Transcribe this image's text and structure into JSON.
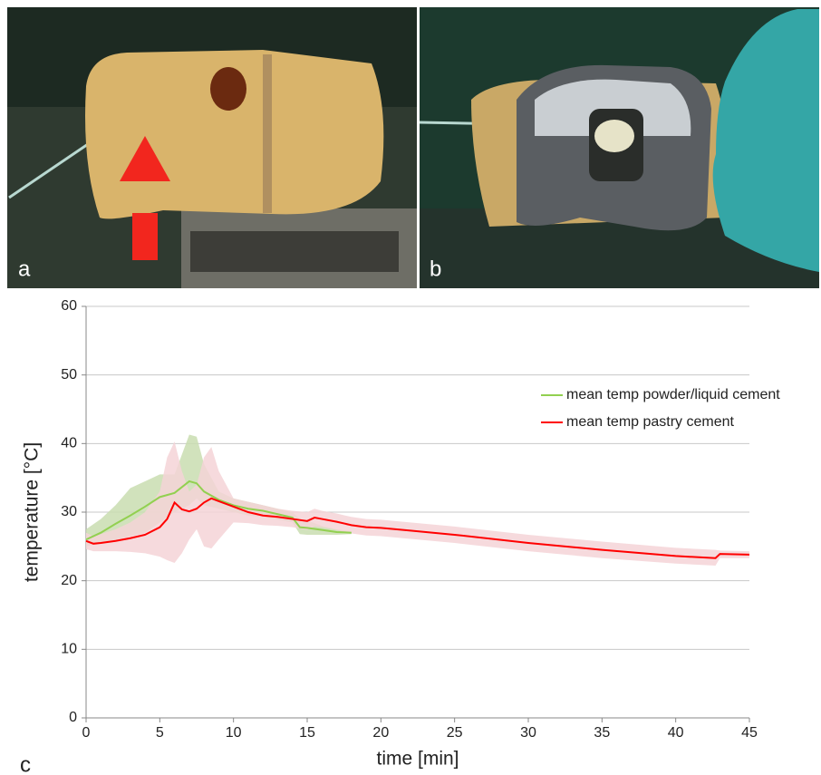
{
  "panels": {
    "a": "a",
    "b": "b",
    "c": "c"
  },
  "chart_data": {
    "type": "line",
    "x_label": "time [min]",
    "y_label": "temperature [°C]",
    "xlim": [
      0,
      45
    ],
    "xticks": [
      0,
      5,
      10,
      15,
      20,
      25,
      30,
      35,
      40,
      45
    ],
    "ylim": [
      0,
      60
    ],
    "yticks": [
      0,
      10,
      20,
      30,
      40,
      50,
      60
    ],
    "grid": true,
    "series": [
      {
        "name": "mean temp powder/liquid cement",
        "color": "#92d050",
        "band_color": "#c9ddb0",
        "x": [
          0,
          1,
          2,
          3,
          4,
          5,
          6,
          7,
          7.5,
          8,
          9,
          10,
          11,
          12,
          13,
          14,
          14.5,
          15,
          16,
          17,
          18
        ],
        "values": [
          26,
          27,
          28.3,
          29.5,
          30.8,
          32.2,
          32.8,
          34.5,
          34.2,
          33,
          31.8,
          31,
          30.5,
          30.2,
          29.7,
          29.2,
          27.8,
          27.7,
          27.4,
          27.1,
          27
        ],
        "upper": [
          27.5,
          29,
          31,
          33.5,
          34.5,
          35.5,
          35.5,
          41.3,
          41,
          37,
          33,
          32,
          31.5,
          31,
          30.5,
          30,
          29,
          28.8,
          28,
          27.5,
          27.2
        ],
        "lower": [
          25,
          25.5,
          26,
          26.5,
          27,
          28.5,
          30,
          31,
          32,
          31,
          30.5,
          30,
          29.5,
          29.3,
          28.9,
          28.5,
          26.8,
          26.7,
          26.7,
          26.7,
          26.8
        ]
      },
      {
        "name": "mean temp pastry cement",
        "color": "#ff0000",
        "band_color": "#f5d3d7",
        "x": [
          0,
          0.5,
          1,
          2,
          3,
          4,
          5,
          5.5,
          6,
          6.5,
          7,
          7.5,
          8,
          8.5,
          9,
          10,
          11,
          12,
          13,
          14,
          15,
          15.5,
          16,
          17,
          18,
          19,
          20,
          22,
          25,
          30,
          35,
          40,
          42.7,
          43,
          45
        ],
        "values": [
          25.8,
          25.4,
          25.5,
          25.8,
          26.2,
          26.7,
          27.8,
          29,
          31.4,
          30.4,
          30.1,
          30.5,
          31.4,
          32,
          31.6,
          30.8,
          30,
          29.5,
          29.3,
          29,
          28.7,
          29.2,
          29,
          28.6,
          28.1,
          27.8,
          27.7,
          27.3,
          26.7,
          25.5,
          24.5,
          23.6,
          23.3,
          23.9,
          23.8
        ],
        "upper": [
          27,
          26.5,
          26.8,
          27.5,
          28.5,
          30,
          33,
          38,
          40.3,
          36,
          33,
          34,
          38,
          39.5,
          36,
          32,
          31.5,
          31,
          30.5,
          30.2,
          30,
          30.5,
          30.2,
          29.8,
          29.3,
          29,
          28.9,
          28.5,
          27.9,
          26.7,
          25.7,
          24.8,
          24.5,
          24.4,
          24.3
        ],
        "lower": [
          24.6,
          24.3,
          24.3,
          24.3,
          24.2,
          24,
          23.5,
          23,
          22.6,
          24,
          26,
          27.5,
          25,
          24.7,
          26,
          28.5,
          28.4,
          28.1,
          28,
          27.8,
          27.4,
          27.9,
          27.8,
          27.4,
          26.9,
          26.6,
          26.5,
          26.1,
          25.5,
          24.3,
          23.3,
          22.5,
          22.2,
          23.3,
          23.3
        ]
      }
    ],
    "legend_position": "upper right"
  }
}
